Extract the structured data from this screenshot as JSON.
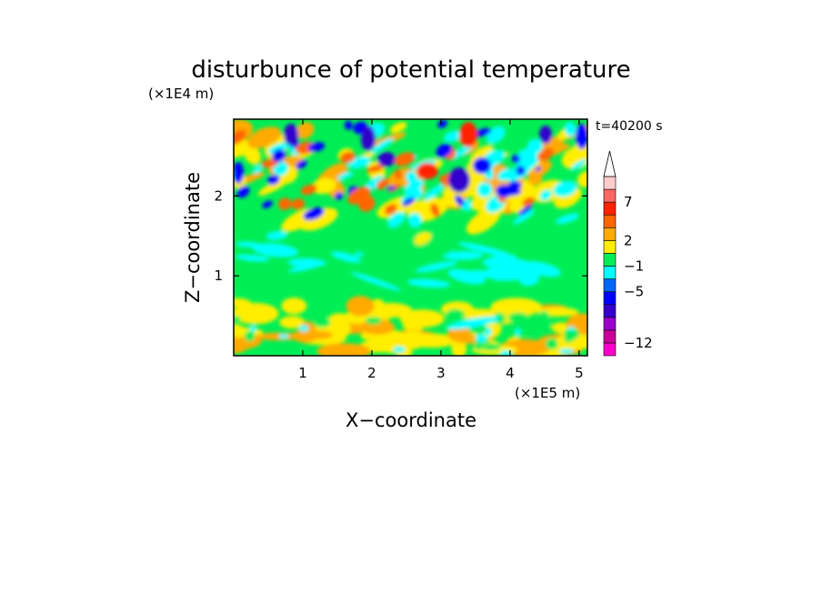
{
  "chart_data": {
    "type": "heatmap",
    "title": "disturbunce of potential temperature",
    "time_label": "t=40200 s",
    "xlabel": "X−coordinate",
    "ylabel": "Z−coordinate",
    "x_unit": "(×1E5 m)",
    "y_unit": "(×1E4 m)",
    "xlim": [
      0,
      5.12
    ],
    "ylim": [
      0,
      2.96
    ],
    "x_ticks": [
      {
        "v": 1,
        "label": "1"
      },
      {
        "v": 2,
        "label": "2"
      },
      {
        "v": 3,
        "label": "3"
      },
      {
        "v": 4,
        "label": "4"
      },
      {
        "v": 5,
        "label": "5"
      }
    ],
    "y_ticks": [
      {
        "v": 1,
        "label": "1"
      },
      {
        "v": 2,
        "label": "2"
      }
    ],
    "colorbar": {
      "levels": [
        {
          "label": "−12",
          "color": "#ff00cc"
        },
        {
          "label": "",
          "color": "#cc0099"
        },
        {
          "label": "",
          "color": "#9900cc"
        },
        {
          "label": "",
          "color": "#3300cc"
        },
        {
          "label": "−5",
          "color": "#0000ff"
        },
        {
          "label": "",
          "color": "#0066ff"
        },
        {
          "label": "−1",
          "color": "#00ffff"
        },
        {
          "label": "",
          "color": "#00ee55"
        },
        {
          "label": "2",
          "color": "#ffee00"
        },
        {
          "label": "",
          "color": "#ffaa00"
        },
        {
          "label": "",
          "color": "#ff6600"
        },
        {
          "label": "7",
          "color": "#ff2200"
        },
        {
          "label": "",
          "color": "#ff6666"
        },
        {
          "label": "",
          "color": "#ffcccc"
        }
      ]
    }
  }
}
